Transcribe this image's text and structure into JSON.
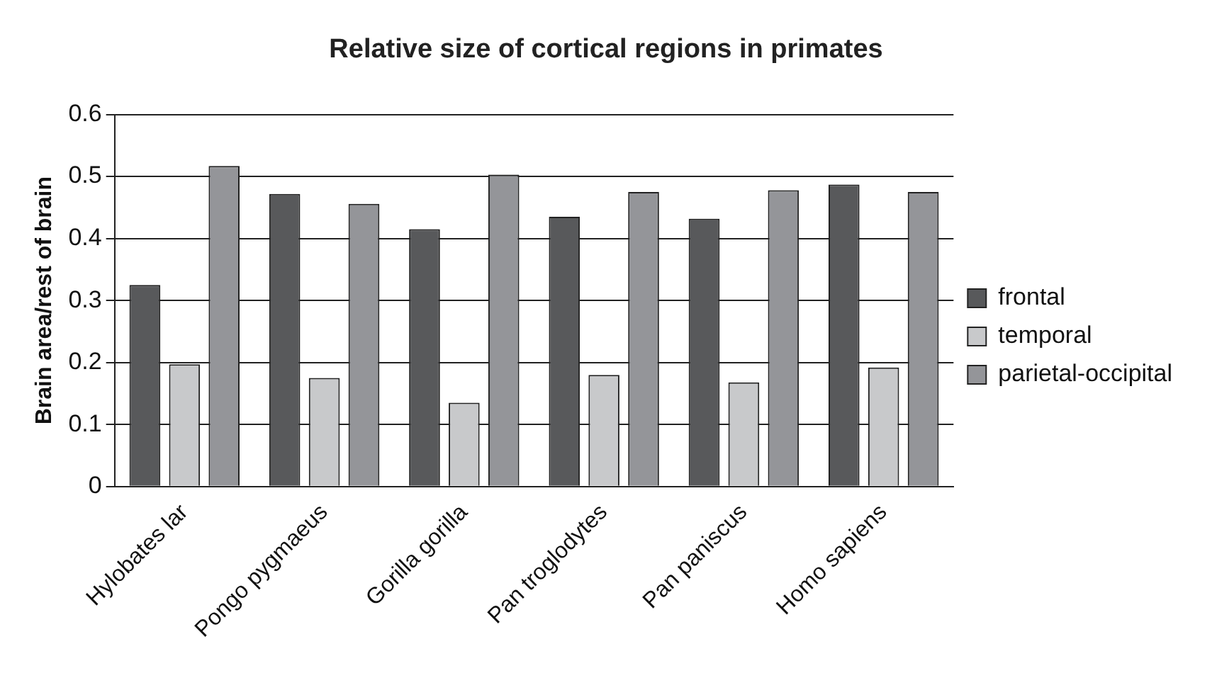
{
  "chart_data": {
    "type": "bar",
    "title": "Relative size of cortical regions in primates",
    "ylabel": "Brain area/rest of brain",
    "categories": [
      "Hylobates lar",
      "Pongo pygmaeus",
      "Gorilla gorilla",
      "Pan troglodytes",
      "Pan paniscus",
      "Homo sapiens"
    ],
    "series": [
      {
        "name": "frontal",
        "color": "#58595b",
        "values": [
          0.325,
          0.472,
          0.415,
          0.435,
          0.432,
          0.487
        ]
      },
      {
        "name": "temporal",
        "color": "#c8c9cb",
        "values": [
          0.197,
          0.175,
          0.135,
          0.18,
          0.168,
          0.192
        ]
      },
      {
        "name": "parietal-occipital",
        "color": "#949599",
        "values": [
          0.517,
          0.456,
          0.503,
          0.475,
          0.478,
          0.475
        ]
      }
    ],
    "ylim": [
      0,
      0.6
    ],
    "yticks": [
      0,
      0.1,
      0.2,
      0.3,
      0.4,
      0.5,
      0.6
    ],
    "grid": "y",
    "legend": "right"
  }
}
